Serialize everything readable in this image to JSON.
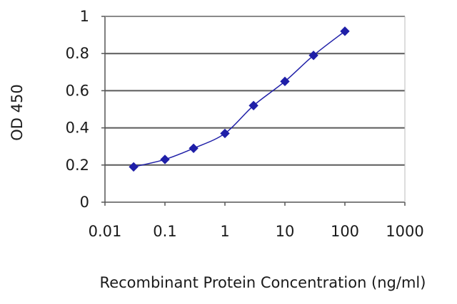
{
  "chart_data": {
    "type": "scatter",
    "title": "",
    "xlabel": "Recombinant Protein Concentration (ng/ml)",
    "ylabel": "OD 450",
    "xscale": "log",
    "xlim": [
      0.01,
      1000
    ],
    "ylim": [
      0,
      1
    ],
    "xticks": [
      "0.01",
      "0.1",
      "1",
      "10",
      "100",
      "1000"
    ],
    "yticks": [
      "0",
      "0.2",
      "0.4",
      "0.6",
      "0.8",
      "1"
    ],
    "grid": "horizontal",
    "legend": "none",
    "series": [
      {
        "x": [
          0.03,
          0.1,
          0.3,
          1,
          3,
          10,
          30,
          100
        ],
        "y": [
          0.19,
          0.23,
          0.29,
          0.37,
          0.52,
          0.65,
          0.79,
          0.92
        ],
        "color": "#1f1fa8",
        "marker": "diamond",
        "line": "smooth"
      }
    ],
    "plot_background": "#ffffff",
    "gridline_color": "#5a5a5a"
  }
}
